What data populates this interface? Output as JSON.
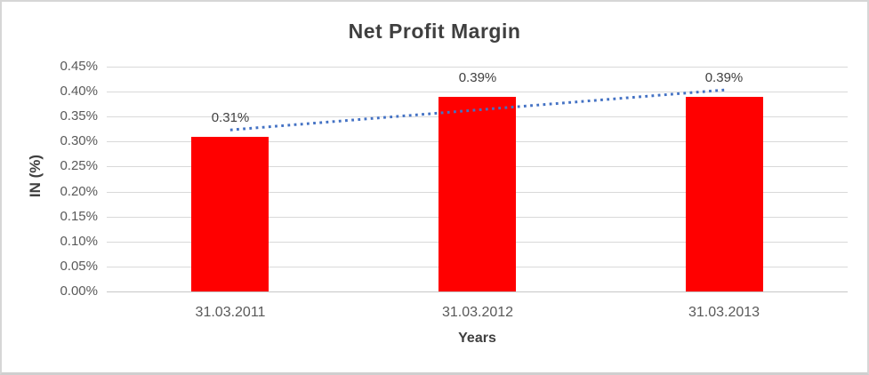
{
  "chart_data": {
    "type": "bar",
    "title": "Net Profit Margin",
    "xlabel": "Years",
    "ylabel": "IN (%)",
    "categories": [
      "31.03.2011",
      "31.03.2012",
      "31.03.2013"
    ],
    "values": [
      0.31,
      0.39,
      0.39
    ],
    "data_labels": [
      "0.31%",
      "0.39%",
      "0.39%"
    ],
    "ylim": [
      0,
      0.45
    ],
    "ytick_step": 0.05,
    "ytick_labels": [
      "0.00%",
      "0.05%",
      "0.10%",
      "0.15%",
      "0.20%",
      "0.25%",
      "0.30%",
      "0.35%",
      "0.40%",
      "0.45%"
    ],
    "grid": true,
    "legend": "none",
    "bar_color": "#FF0000",
    "trendline": {
      "type": "linear",
      "style": "dotted",
      "color": "#4472C4"
    },
    "colors": {
      "title": "#3F3F3F",
      "tick_label": "#595959",
      "data_label": "#404040",
      "gridline": "#D9D9D9",
      "axis_line": "#C6C6C6",
      "frame_border": "#D6D6D6"
    }
  }
}
